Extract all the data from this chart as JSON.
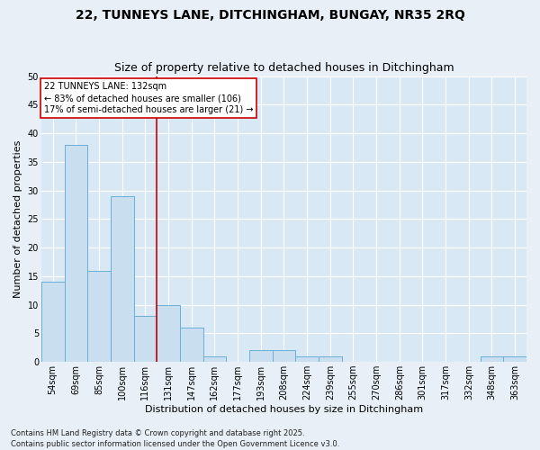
{
  "title1": "22, TUNNEYS LANE, DITCHINGHAM, BUNGAY, NR35 2RQ",
  "title2": "Size of property relative to detached houses in Ditchingham",
  "xlabel": "Distribution of detached houses by size in Ditchingham",
  "ylabel": "Number of detached properties",
  "categories": [
    "54sqm",
    "69sqm",
    "85sqm",
    "100sqm",
    "116sqm",
    "131sqm",
    "147sqm",
    "162sqm",
    "177sqm",
    "193sqm",
    "208sqm",
    "224sqm",
    "239sqm",
    "255sqm",
    "270sqm",
    "286sqm",
    "301sqm",
    "317sqm",
    "332sqm",
    "348sqm",
    "363sqm"
  ],
  "values": [
    14,
    38,
    16,
    29,
    8,
    10,
    6,
    1,
    0,
    2,
    2,
    1,
    1,
    0,
    0,
    0,
    0,
    0,
    0,
    1,
    1
  ],
  "bar_color": "#c9dff0",
  "bar_edge_color": "#6aafd6",
  "vline_color": "#cc0000",
  "annotation_text": "22 TUNNEYS LANE: 132sqm\n← 83% of detached houses are smaller (106)\n17% of semi-detached houses are larger (21) →",
  "annotation_box_color": "#ffffff",
  "annotation_box_edge": "#cc0000",
  "ylim": [
    0,
    50
  ],
  "yticks": [
    0,
    5,
    10,
    15,
    20,
    25,
    30,
    35,
    40,
    45,
    50
  ],
  "fig_background": "#e8eff7",
  "plot_background": "#d8e8f4",
  "footer_text": "Contains HM Land Registry data © Crown copyright and database right 2025.\nContains public sector information licensed under the Open Government Licence v3.0.",
  "title_fontsize": 10,
  "subtitle_fontsize": 9,
  "axis_label_fontsize": 8,
  "tick_fontsize": 7,
  "annotation_fontsize": 7,
  "footer_fontsize": 6
}
